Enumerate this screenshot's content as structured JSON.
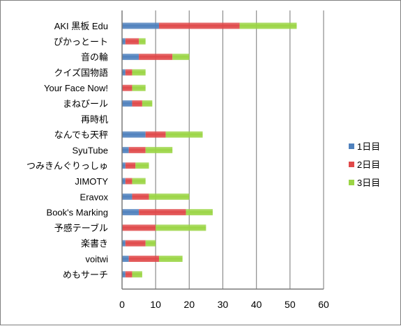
{
  "chart_data": {
    "type": "bar",
    "orientation": "horizontal",
    "stacked": true,
    "categories": [
      "AKI 黒板 Edu",
      "ぴかっとート",
      "音の輪",
      "クイズ国物語",
      "Your Face Now!",
      "まねびール",
      "再時机",
      "なんでも天秤",
      "SyuTube",
      "つみきんぐりっしゅ",
      "JIMOTY",
      "Eravox",
      "Book's Marking",
      "予感テーブル",
      "楽書き",
      "voitwi",
      "めもサーチ"
    ],
    "series": [
      {
        "name": "1日目",
        "color": "#4f81bd",
        "values": [
          11,
          1,
          5,
          1,
          0,
          3,
          0,
          7,
          2,
          1,
          1,
          3,
          5,
          0,
          1,
          2,
          1
        ]
      },
      {
        "name": "2日目",
        "color": "#e0494a",
        "values": [
          24,
          4,
          10,
          2,
          3,
          3,
          0,
          6,
          5,
          3,
          2,
          5,
          14,
          10,
          6,
          9,
          2
        ]
      },
      {
        "name": "3日目",
        "color": "#9bd545",
        "values": [
          17,
          2,
          5,
          4,
          4,
          3,
          0,
          11,
          8,
          4,
          4,
          12,
          8,
          15,
          3,
          7,
          3
        ]
      }
    ],
    "xlim": [
      0,
      60
    ],
    "xticks": [
      0,
      10,
      20,
      30,
      40,
      50,
      60
    ],
    "grid": "vertical",
    "legend_position": "right"
  }
}
